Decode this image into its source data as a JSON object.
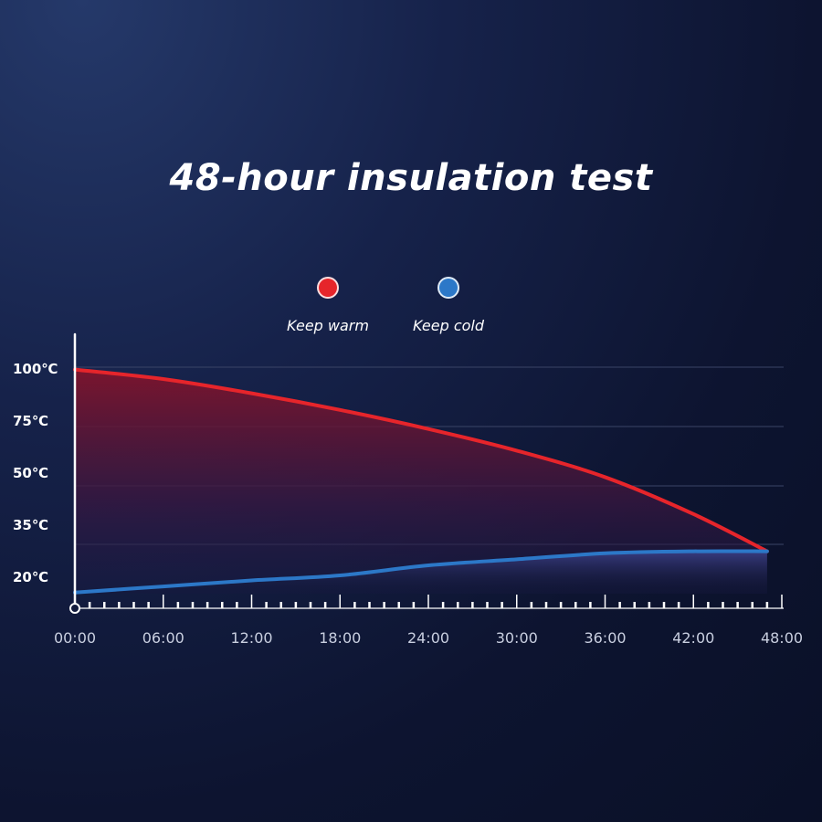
{
  "title": "48-hour insulation test",
  "colors": {
    "warm": "#e6252b",
    "cold": "#2c78c8",
    "grid": "#3a4466",
    "axis": "#ffffff"
  },
  "chart_data": {
    "type": "area",
    "title": "48-hour insulation test",
    "legend_position": "top-center",
    "grid": true,
    "x_ticks": [
      "00:00",
      "06:00",
      "12:00",
      "18:00",
      "24:00",
      "30:00",
      "36:00",
      "42:00",
      "48:00"
    ],
    "y_ticks": [
      {
        "value": 100,
        "label": "100℃"
      },
      {
        "value": 75,
        "label": "75℃"
      },
      {
        "value": 50,
        "label": "50℃"
      },
      {
        "value": 35,
        "label": "35℃"
      },
      {
        "value": 20,
        "label": "20℃"
      }
    ],
    "xlim": [
      0,
      48
    ],
    "series": [
      {
        "name": "Keep warm",
        "color": "#e6252b",
        "x": [
          0,
          6,
          12,
          18,
          24,
          30,
          36,
          42,
          47
        ],
        "y": [
          99,
          95,
          89,
          82,
          74,
          65,
          54,
          43,
          32
        ]
      },
      {
        "name": "Keep cold",
        "color": "#2c78c8",
        "x": [
          0,
          6,
          12,
          18,
          24,
          30,
          36,
          42,
          47
        ],
        "y": [
          3,
          9,
          15,
          20,
          25,
          28,
          31,
          32,
          32
        ]
      }
    ]
  }
}
